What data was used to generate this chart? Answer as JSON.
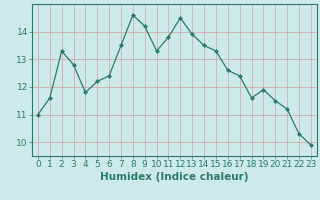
{
  "x": [
    0,
    1,
    2,
    3,
    4,
    5,
    6,
    7,
    8,
    9,
    10,
    11,
    12,
    13,
    14,
    15,
    16,
    17,
    18,
    19,
    20,
    21,
    22,
    23
  ],
  "y": [
    11.0,
    11.6,
    13.3,
    12.8,
    11.8,
    12.2,
    12.4,
    13.5,
    14.6,
    14.2,
    13.3,
    13.8,
    14.5,
    13.9,
    13.5,
    13.3,
    12.6,
    12.4,
    11.6,
    11.9,
    11.5,
    11.2,
    10.3,
    9.9
  ],
  "line_color": "#2d7a6e",
  "marker": "D",
  "marker_size": 2,
  "bg_color": "#cceae8",
  "grid_color_h": "#d4a0a0",
  "grid_color_v": "#d4a0a0",
  "xlabel": "Humidex (Indice chaleur)",
  "xlim": [
    -0.5,
    23.5
  ],
  "ylim": [
    9.5,
    15.0
  ],
  "yticks": [
    10,
    11,
    12,
    13,
    14
  ],
  "xticks": [
    0,
    1,
    2,
    3,
    4,
    5,
    6,
    7,
    8,
    9,
    10,
    11,
    12,
    13,
    14,
    15,
    16,
    17,
    18,
    19,
    20,
    21,
    22,
    23
  ],
  "tick_color": "#2d7a6e",
  "label_color": "#2d7a6e",
  "font_size": 6.5,
  "xlabel_size": 7.5
}
